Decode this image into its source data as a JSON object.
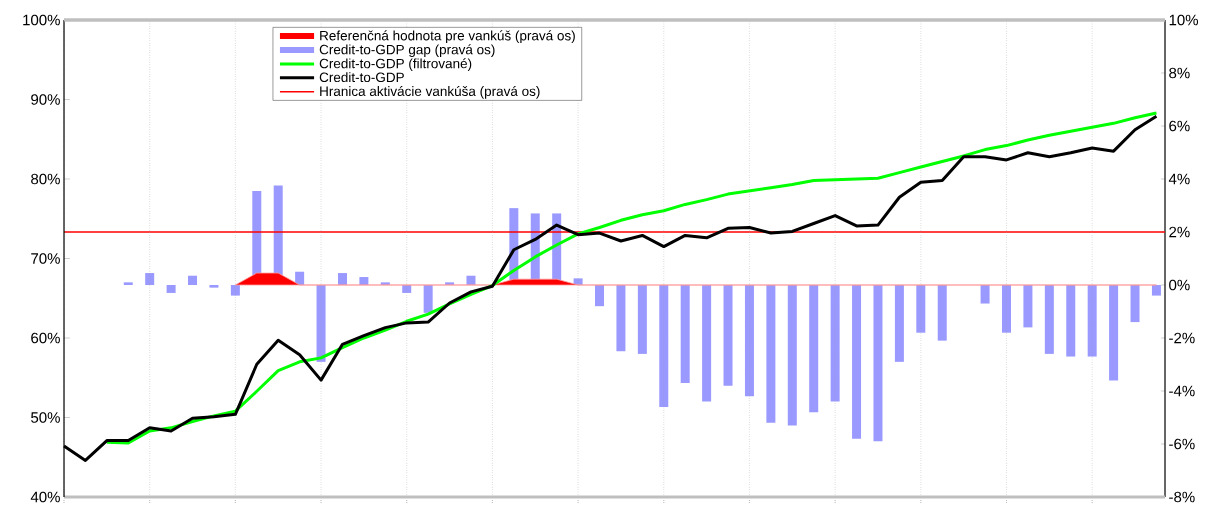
{
  "chart_data": {
    "type": "bar",
    "categories": [
      null,
      null,
      null,
      null,
      null,
      null,
      null,
      null,
      null,
      null,
      null,
      null,
      null,
      null,
      null,
      null,
      null,
      null,
      null,
      null,
      null,
      null,
      null,
      null,
      null,
      null,
      null,
      null,
      null,
      null,
      null,
      null,
      null,
      null,
      null,
      null,
      null,
      null,
      null,
      null,
      null,
      null,
      null,
      null,
      null,
      null,
      null,
      null,
      null,
      null,
      null,
      null
    ],
    "series": [
      {
        "name": "Referenčná hodnota pre vankúš (pravá os)",
        "type": "area",
        "axis": "y2",
        "color": "#ff0000",
        "values": [
          null,
          null,
          null,
          null,
          null,
          null,
          null,
          null,
          0,
          0.45,
          0.45,
          0,
          0,
          0,
          0,
          0,
          0,
          0,
          0,
          0,
          0,
          0.22,
          0.22,
          0.22,
          0,
          0,
          0,
          0,
          0,
          0,
          0,
          0,
          0,
          0,
          0,
          0,
          0,
          0,
          0,
          0,
          0,
          0,
          0,
          0,
          0,
          0,
          0,
          0,
          0,
          0,
          0,
          0
        ]
      },
      {
        "name": "Credit-to-GDP gap (pravá os)",
        "axis": "y2",
        "color": "#9999ff",
        "values": [
          null,
          null,
          null,
          0.1,
          0.45,
          -0.3,
          0.35,
          -0.1,
          -0.4,
          3.55,
          3.75,
          0.5,
          -2.9,
          0.45,
          0.3,
          0.1,
          -0.3,
          -1.05,
          0.1,
          0.35,
          null,
          2.9,
          2.7,
          2.7,
          0.25,
          -0.8,
          -2.5,
          -2.6,
          -4.6,
          -3.7,
          -4.4,
          -3.8,
          -4.2,
          -5.2,
          -5.3,
          -4.8,
          -4.4,
          -5.8,
          -5.9,
          -2.9,
          -1.8,
          -2.1,
          0,
          -0.7,
          -1.8,
          -1.6,
          -2.6,
          -2.7,
          -2.7,
          -3.6,
          -1.4,
          -0.4
        ]
      },
      {
        "name": "Credit-to-GDP (filtrované)",
        "type": "line",
        "color": "#00ff00",
        "values": [
          null,
          null,
          46.9,
          46.8,
          48.3,
          48.7,
          49.5,
          50.2,
          50.8,
          53.3,
          55.9,
          57.0,
          57.5,
          58.8,
          60.0,
          61.0,
          62.1,
          63.0,
          64.3,
          65.5,
          66.6,
          68.5,
          70.2,
          71.7,
          73.1,
          73.9,
          74.8,
          75.5,
          76.0,
          76.8,
          77.4,
          78.1,
          78.5,
          78.9,
          79.3,
          79.8,
          79.9,
          80.0,
          80.1,
          80.8,
          81.5,
          82.2,
          82.9,
          83.7,
          84.2,
          84.9,
          85.5,
          86.0,
          86.5,
          87.0,
          87.7,
          88.3
        ]
      },
      {
        "name": "Credit-to-GDP",
        "type": "line",
        "color": "#000000",
        "values": [
          46.4,
          44.6,
          47.1,
          47.1,
          48.7,
          48.3,
          49.9,
          50.1,
          50.4,
          56.7,
          59.7,
          57.9,
          54.7,
          59.2,
          60.3,
          61.3,
          61.9,
          62.0,
          64.4,
          65.8,
          66.5,
          71.1,
          72.4,
          74.2,
          73.0,
          73.2,
          72.2,
          72.9,
          71.5,
          72.9,
          72.6,
          73.8,
          73.9,
          73.2,
          73.4,
          74.4,
          75.4,
          74.1,
          74.2,
          77.7,
          79.6,
          79.8,
          82.8,
          82.8,
          82.4,
          83.3,
          82.8,
          83.3,
          83.9,
          83.5,
          86.2,
          87.9
        ]
      }
    ],
    "ref_lines": [
      {
        "axis": "y2",
        "value": 2,
        "label": "Hranica aktivácie vankúša (pravá os)",
        "color": "#ff0000"
      }
    ],
    "ylim": [
      40,
      100
    ],
    "yticks": [
      {
        "value": 40,
        "label": "40%"
      },
      {
        "value": 50,
        "label": "50%"
      },
      {
        "value": 60,
        "label": "60%"
      },
      {
        "value": 70,
        "label": "70%"
      },
      {
        "value": 80,
        "label": "80%"
      },
      {
        "value": 90,
        "label": "90%"
      },
      {
        "value": 100,
        "label": "100%"
      }
    ],
    "y2lim": [
      -8,
      10
    ],
    "y2ticks": [
      {
        "value": -8,
        "label": "-8%"
      },
      {
        "value": -6,
        "label": "-6%"
      },
      {
        "value": -4,
        "label": "-4%"
      },
      {
        "value": -2,
        "label": "-2%"
      },
      {
        "value": 0,
        "label": "0%"
      },
      {
        "value": 2,
        "label": "2%"
      },
      {
        "value": 4,
        "label": "4%"
      },
      {
        "value": 6,
        "label": "6%"
      },
      {
        "value": 8,
        "label": "8%"
      },
      {
        "value": 10,
        "label": "10%"
      }
    ],
    "grid": "x",
    "legend": "top"
  }
}
